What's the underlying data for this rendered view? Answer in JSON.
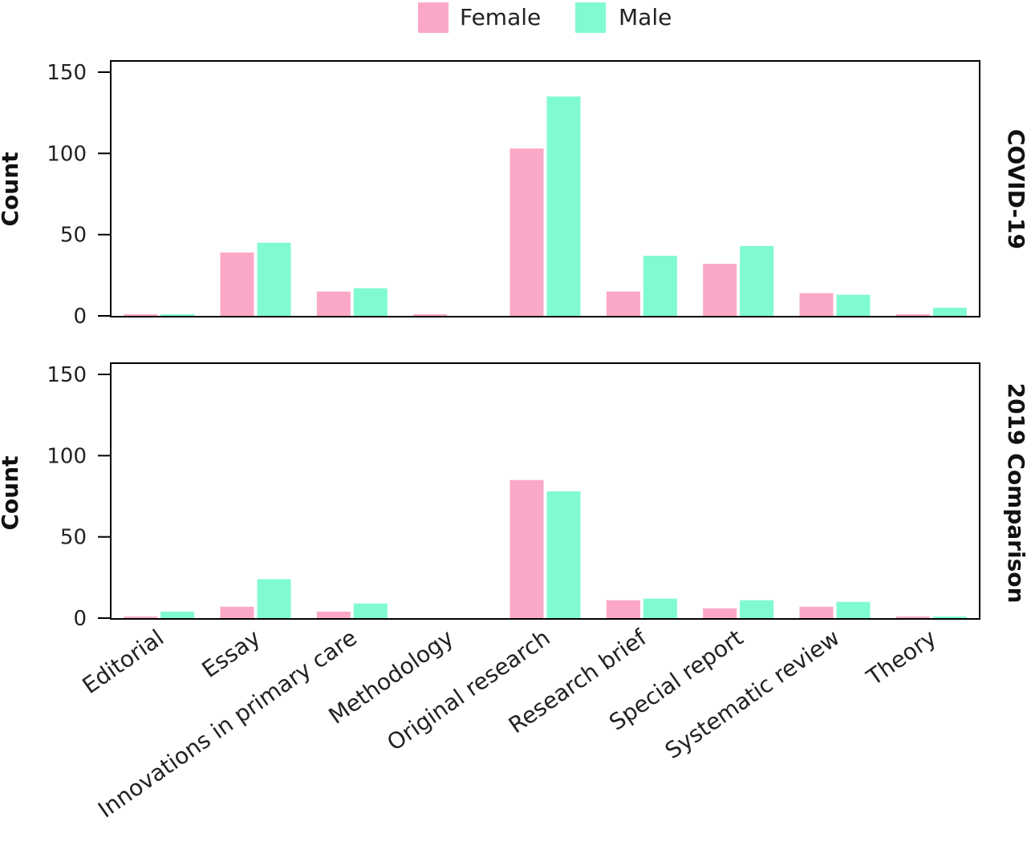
{
  "chart_data": {
    "type": "bar",
    "categories": [
      "Editorial",
      "Essay",
      "Innovations in primary care",
      "Methodology",
      "Original research",
      "Research brief",
      "Special report",
      "Systematic review",
      "Theory"
    ],
    "legend": {
      "placement": "top-center",
      "entries": [
        "Female",
        "Male"
      ]
    },
    "colors": {
      "Female": "#fba8c8",
      "Male": "#80fbd1"
    },
    "ylim": [
      0,
      150
    ],
    "yticks": [
      0,
      50,
      100,
      150
    ],
    "ylabel": "Count",
    "grid": false,
    "panels": [
      {
        "facet": "COVID-19",
        "series": [
          {
            "name": "Female",
            "values": [
              1,
              39,
              15,
              1,
              103,
              15,
              32,
              14,
              1
            ]
          },
          {
            "name": "Male",
            "values": [
              1,
              45,
              17,
              0,
              135,
              37,
              43,
              13,
              5
            ]
          }
        ]
      },
      {
        "facet": "2019 Comparison",
        "series": [
          {
            "name": "Female",
            "values": [
              1,
              7,
              4,
              0,
              85,
              11,
              6,
              7,
              1
            ]
          },
          {
            "name": "Male",
            "values": [
              4,
              24,
              9,
              0,
              78,
              12,
              11,
              10,
              1
            ]
          }
        ]
      }
    ]
  }
}
